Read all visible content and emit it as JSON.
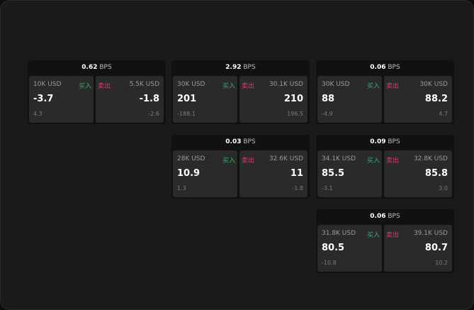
{
  "labels": {
    "buy": "买入",
    "sell": "卖出",
    "unit": "BPS"
  },
  "colors": {
    "buy": "#2fb36a",
    "sell": "#e0386a"
  },
  "widgets": [
    {
      "spread": "0.62",
      "buy": {
        "qty": "10K USD",
        "price": "-3.7",
        "change": "4.3"
      },
      "sell": {
        "qty": "5.5K USD",
        "price": "-1.8",
        "change": "-2.6"
      }
    },
    {
      "spread": "2.92",
      "buy": {
        "qty": "30K USD",
        "price": "201",
        "change": "-188.1"
      },
      "sell": {
        "qty": "30.1K USD",
        "price": "210",
        "change": "196.5"
      }
    },
    {
      "spread": "0.06",
      "buy": {
        "qty": "30K USD",
        "price": "88",
        "change": "-4.9"
      },
      "sell": {
        "qty": "30K USD",
        "price": "88.2",
        "change": "4.7"
      }
    },
    {
      "spread": "0.03",
      "buy": {
        "qty": "28K USD",
        "price": "10.9",
        "change": "1.3"
      },
      "sell": {
        "qty": "32.6K USD",
        "price": "11",
        "change": "-1.8"
      }
    },
    {
      "spread": "0.09",
      "buy": {
        "qty": "34.1K USD",
        "price": "85.5",
        "change": "-3.1"
      },
      "sell": {
        "qty": "32.8K USD",
        "price": "85.8",
        "change": "3.0"
      }
    },
    {
      "spread": "0.06",
      "buy": {
        "qty": "31.8K USD",
        "price": "80.5",
        "change": "-10.8"
      },
      "sell": {
        "qty": "39.1K USD",
        "price": "80.7",
        "change": "10.2"
      }
    }
  ]
}
